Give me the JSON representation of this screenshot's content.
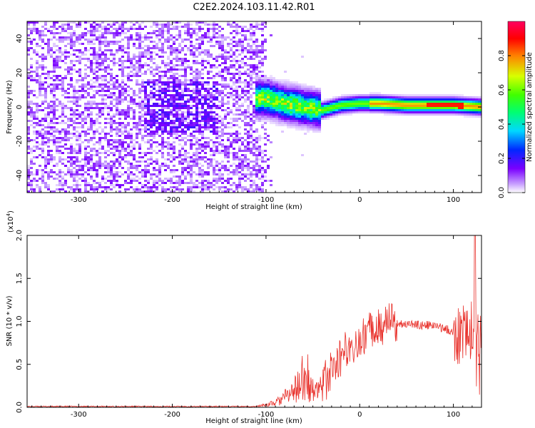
{
  "figure_title": "C2E2.2024.103.11.42.R01",
  "colors": {
    "snr_line": "#e8302a",
    "axes": "#000000"
  },
  "chart_data": [
    {
      "type": "heatmap",
      "xlabel": "Height of straight line (km)",
      "ylabel": "Frequency (Hz)",
      "xlim": [
        -355,
        130
      ],
      "ylim": [
        -50,
        50
      ],
      "x_ticks": [
        -300,
        -200,
        -100,
        0,
        100
      ],
      "y_ticks": [
        -40,
        -20,
        0,
        20,
        40
      ],
      "colorbar": {
        "label": "Normalized spectral amplitude",
        "range": [
          0,
          1
        ],
        "ticks": [
          "0.0",
          "0.2",
          "0.4",
          "0.6",
          "0.8"
        ],
        "colormap": "rainbow-white"
      },
      "features": {
        "noise_region_x": [
          -355,
          -92
        ],
        "carrier_track": [
          {
            "x": -100,
            "f": 5
          },
          {
            "x": -80,
            "f": 2
          },
          {
            "x": -60,
            "f": 0
          },
          {
            "x": -40,
            "f": -2
          },
          {
            "x": -20,
            "f": 1
          },
          {
            "x": 0,
            "f": 2
          },
          {
            "x": 20,
            "f": 2
          },
          {
            "x": 50,
            "f": 1
          },
          {
            "x": 80,
            "f": 1
          },
          {
            "x": 100,
            "f": 1
          },
          {
            "x": 130,
            "f": 0
          }
        ]
      }
    },
    {
      "type": "line",
      "xlabel": "Height of straight line (km)",
      "ylabel": "SNR (10 * v/v)",
      "y_multiplier": "(x10",
      "y_multiplier_exp": "4",
      "y_multiplier_close": ")",
      "xlim": [
        -355,
        130
      ],
      "ylim": [
        0,
        2.0
      ],
      "x_ticks": [
        -300,
        -200,
        -100,
        0,
        100
      ],
      "y_ticks": [
        "0.0",
        "0.5",
        "1.0",
        "1.5",
        "2.0"
      ],
      "series": [
        {
          "envelope": [
            {
              "x": -355,
              "y": 0.01
            },
            {
              "x": -200,
              "y": 0.01
            },
            {
              "x": -110,
              "y": 0.01
            },
            {
              "x": -90,
              "y": 0.05
            },
            {
              "x": -75,
              "y": 0.15
            },
            {
              "x": -60,
              "y": 0.3
            },
            {
              "x": -52,
              "y": 0.25
            },
            {
              "x": -45,
              "y": 0.15
            },
            {
              "x": -35,
              "y": 0.35
            },
            {
              "x": -20,
              "y": 0.6
            },
            {
              "x": 0,
              "y": 0.8
            },
            {
              "x": 20,
              "y": 0.95
            },
            {
              "x": 40,
              "y": 0.98
            },
            {
              "x": 60,
              "y": 0.96
            },
            {
              "x": 80,
              "y": 0.95
            },
            {
              "x": 95,
              "y": 0.9
            },
            {
              "x": 105,
              "y": 0.85
            },
            {
              "x": 115,
              "y": 0.9
            },
            {
              "x": 130,
              "y": 0.9
            }
          ],
          "peak": {
            "x": 123,
            "y": 2.0
          }
        }
      ]
    }
  ]
}
